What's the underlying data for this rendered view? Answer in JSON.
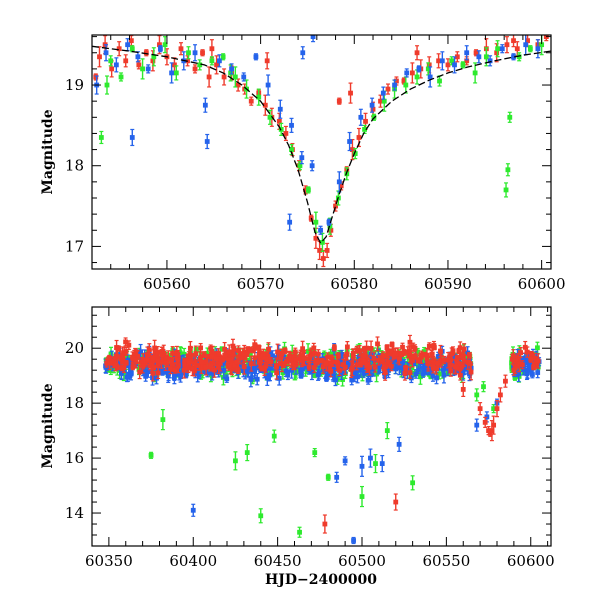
{
  "chart_data": [
    {
      "type": "scatter",
      "panel": "top",
      "xlabel": "",
      "ylabel": "Magnitude",
      "xlim": [
        60552,
        60601
      ],
      "ylim": [
        19.62,
        16.72
      ],
      "y_inverted": true,
      "grid": false,
      "x_ticks": [
        60560,
        60570,
        60580,
        60590,
        60600
      ],
      "x_tick_labels": [
        "60560",
        "60570",
        "60580",
        "60590",
        "60600"
      ],
      "y_ticks": [
        17,
        18,
        19
      ],
      "y_tick_labels": [
        "17",
        "18",
        "19"
      ],
      "series": [
        {
          "color": "#ef3b2c",
          "x": [
            60552.4,
            60552.8,
            60553.4,
            60554.1,
            60554.9,
            60555.6,
            60556.2,
            60557.0,
            60557.8,
            60558.5,
            60559.2,
            60560.0,
            60560.8,
            60561.5,
            60562.2,
            60563.0,
            60563.8,
            60564.5,
            60565.3,
            60566.1,
            60566.9,
            60567.6,
            60568.3,
            60569.0,
            60569.8,
            60570.5,
            60571.2,
            60572.0,
            60572.7,
            60573.4,
            60574.1,
            60574.8,
            60575.4,
            60575.9,
            60576.3,
            60576.7,
            60577.1,
            60577.5,
            60578.0,
            60578.6,
            60579.2,
            60579.8,
            60580.5,
            60581.2,
            60582.0,
            60582.8,
            60583.6,
            60584.5,
            60585.3,
            60586.2,
            60587.1,
            60588.0,
            60589.0,
            60590.0,
            60591.0,
            60592.0,
            60593.0,
            60594.1,
            60595.2,
            60596.3,
            60597.4,
            60598.5,
            60599.6,
            60600.5,
            60578.4,
            60579.6,
            60564.8,
            60570.7,
            60586.7,
            60597.0
          ],
          "y": [
            19.1,
            19.35,
            19.5,
            19.2,
            19.45,
            19.3,
            19.55,
            19.25,
            19.4,
            19.3,
            19.5,
            19.35,
            19.25,
            19.45,
            19.3,
            19.2,
            19.4,
            19.1,
            19.25,
            19.1,
            19.15,
            19.0,
            18.95,
            18.8,
            18.9,
            18.75,
            18.6,
            18.55,
            18.4,
            18.2,
            18.0,
            17.7,
            17.35,
            17.1,
            16.95,
            16.85,
            16.95,
            17.2,
            17.5,
            17.75,
            17.95,
            18.2,
            18.35,
            18.55,
            18.7,
            18.8,
            18.95,
            19.05,
            19.05,
            19.15,
            19.2,
            19.25,
            19.3,
            19.25,
            19.35,
            19.3,
            19.4,
            19.45,
            19.4,
            19.5,
            19.45,
            19.55,
            19.5,
            19.6,
            18.8,
            18.9,
            19.45,
            19.3,
            19.4,
            19.55
          ]
        },
        {
          "color": "#2eea2e",
          "x": [
            60553.0,
            60554.0,
            60555.1,
            60556.3,
            60557.4,
            60558.6,
            60559.8,
            60561.0,
            60562.3,
            60563.5,
            60564.8,
            60566.0,
            60567.3,
            60568.5,
            60569.8,
            60571.0,
            60572.2,
            60573.3,
            60574.2,
            60575.1,
            60575.9,
            60576.6,
            60577.4,
            60578.3,
            60579.2,
            60580.1,
            60581.1,
            60582.1,
            60583.2,
            60584.3,
            60585.5,
            60586.7,
            60587.9,
            60589.1,
            60590.4,
            60591.6,
            60592.9,
            60594.1,
            60595.3,
            60596.2,
            60596.4,
            60596.6,
            60597.6,
            60598.8,
            60600.0,
            60553.6,
            60566.8
          ],
          "y": [
            18.35,
            19.3,
            19.1,
            19.45,
            19.2,
            19.35,
            19.5,
            19.15,
            19.4,
            19.25,
            19.3,
            19.35,
            19.1,
            18.95,
            18.85,
            18.6,
            18.45,
            18.2,
            18.0,
            17.7,
            17.3,
            17.05,
            17.25,
            17.6,
            17.9,
            18.15,
            18.45,
            18.6,
            18.8,
            18.95,
            19.0,
            19.1,
            19.2,
            19.05,
            19.3,
            19.25,
            19.15,
            19.35,
            19.45,
            17.7,
            17.95,
            18.6,
            19.35,
            19.45,
            19.5,
            19.0,
            19.15
          ]
        },
        {
          "color": "#2563eb",
          "x": [
            60552.5,
            60553.5,
            60554.6,
            60555.8,
            60556.9,
            60558.0,
            60559.3,
            60560.5,
            60561.8,
            60563.0,
            60564.3,
            60565.6,
            60566.9,
            60568.2,
            60569.5,
            60570.8,
            60572.1,
            60573.1,
            60573.3,
            60574.4,
            60575.5,
            60576.4,
            60577.3,
            60578.4,
            60579.5,
            60580.7,
            60581.9,
            60583.1,
            60584.3,
            60585.6,
            60586.9,
            60588.1,
            60589.4,
            60590.7,
            60592.0,
            60593.3,
            60594.5,
            60595.8,
            60597.0,
            60598.3,
            60599.6,
            60556.3,
            60564.1,
            60574.5,
            60575.6
          ],
          "y": [
            19.0,
            19.4,
            19.25,
            19.5,
            19.35,
            19.2,
            19.45,
            19.15,
            19.3,
            19.4,
            18.3,
            19.3,
            19.2,
            19.1,
            19.35,
            19.0,
            18.7,
            17.3,
            18.5,
            18.1,
            18.0,
            17.2,
            17.3,
            17.8,
            18.3,
            18.6,
            18.75,
            18.9,
            19.0,
            19.15,
            19.2,
            19.1,
            19.3,
            19.25,
            19.4,
            19.35,
            19.3,
            19.45,
            19.35,
            19.5,
            19.45,
            18.35,
            18.75,
            19.4,
            19.6
          ]
        }
      ],
      "model_curve": {
        "color": "#000000",
        "style": "dashed",
        "x": [
          60552,
          60556,
          60560,
          60564,
          60566,
          60568,
          60570,
          60572,
          60573,
          60574,
          60575,
          60575.8,
          60576.4,
          60577,
          60577.6,
          60578.4,
          60579.2,
          60580,
          60581,
          60582,
          60584,
          60586,
          60588,
          60590,
          60592,
          60595,
          60598,
          60601
        ],
        "y": [
          19.48,
          19.42,
          19.35,
          19.25,
          19.15,
          19.0,
          18.8,
          18.48,
          18.25,
          17.95,
          17.55,
          17.18,
          17.04,
          17.12,
          17.35,
          17.65,
          17.92,
          18.15,
          18.4,
          18.58,
          18.8,
          18.95,
          19.06,
          19.15,
          19.22,
          19.3,
          19.37,
          19.42
        ]
      }
    },
    {
      "type": "scatter",
      "panel": "bottom",
      "xlabel": "HJD−2400000",
      "ylabel": "Magnitude",
      "xlim": [
        60340,
        60612
      ],
      "ylim": [
        21.5,
        12.8
      ],
      "y_inverted": true,
      "grid": false,
      "x_ticks": [
        60350,
        60400,
        60450,
        60500,
        60550,
        60600
      ],
      "x_tick_labels": [
        "60350",
        "60400",
        "60450",
        "60500",
        "60550",
        "60600"
      ],
      "y_ticks": [
        14,
        16,
        18,
        20
      ],
      "y_tick_labels": [
        "14",
        "16",
        "18",
        "20"
      ],
      "series": [
        {
          "color": "#2eea2e",
          "x": [
            60375,
            60382,
            60425,
            60432,
            60440,
            60448,
            60463,
            60472,
            60480,
            60500,
            60508,
            60515,
            60530,
            60568,
            60572,
            60578
          ],
          "y": [
            16.1,
            17.4,
            15.9,
            16.2,
            13.9,
            16.8,
            13.3,
            16.2,
            15.3,
            14.6,
            15.8,
            17.0,
            15.1,
            18.3,
            18.6,
            17.8
          ]
        },
        {
          "color": "#2563eb",
          "x": [
            60400,
            60485,
            60490,
            60495,
            60500,
            60505,
            60512,
            60522,
            60568,
            60574,
            60580
          ],
          "y": [
            14.1,
            15.3,
            15.9,
            13.0,
            15.7,
            16.0,
            15.8,
            16.5,
            17.2,
            17.5,
            18.0
          ]
        },
        {
          "color": "#ef3b2c",
          "x": [
            60478,
            60520,
            60560,
            60570,
            60573,
            60575,
            60576,
            60577,
            60578,
            60580,
            60582,
            60585,
            60590,
            60595,
            60600
          ],
          "y": [
            13.6,
            14.4,
            18.5,
            17.8,
            17.3,
            17.0,
            16.9,
            17.0,
            17.2,
            17.8,
            18.3,
            18.8,
            19.2,
            19.4,
            19.6
          ]
        }
      ],
      "dense_band": {
        "x_range": [
          60348,
          60605
        ],
        "series_order": [
          "green",
          "blue",
          "red"
        ],
        "center_magnitudes": {
          "green": 19.45,
          "blue": 19.35,
          "red": 19.6
        }
      }
    }
  ]
}
